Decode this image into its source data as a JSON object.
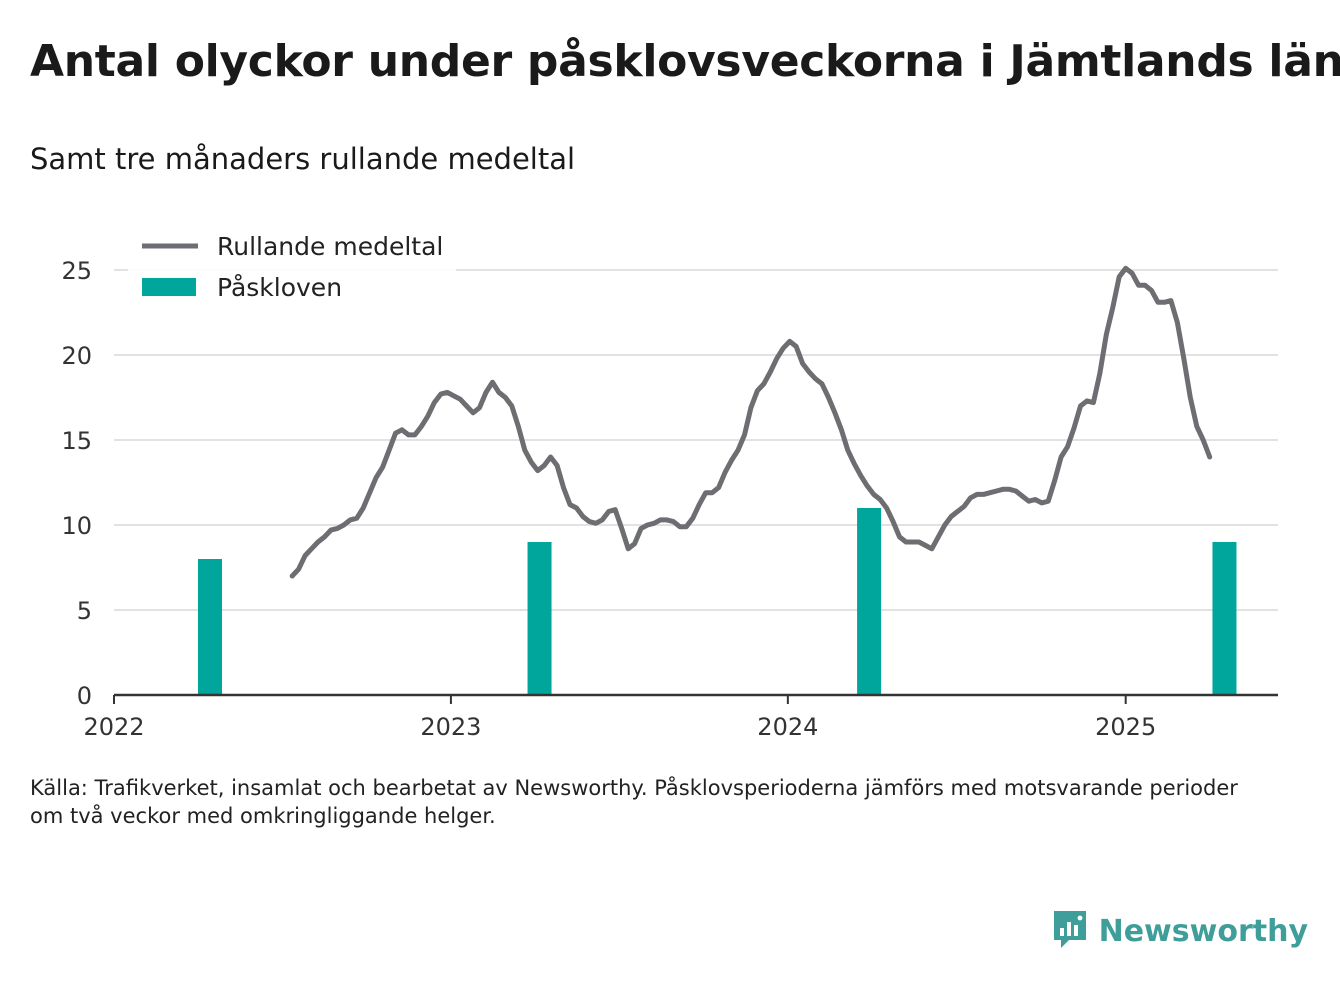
{
  "title": "Antal olyckor under påsklovsveckorna i Jämtlands län",
  "subtitle": "Samt tre månaders rullande medeltal",
  "source_lines": [
    "Källa: Trafikverket, insamlat och bearbetat av Newsworthy. Påsklovsperioderna jämförs med motsvarande perioder",
    "om två veckor med omkringliggande helger."
  ],
  "brand": "Newsworthy",
  "colors": {
    "line": "#6d6e71",
    "bar": "#00a69c",
    "grid": "#d9d9d9",
    "axis": "#333333",
    "brand": "#3f9e99"
  },
  "chart_data": {
    "type": "bar+line",
    "x_axis": {
      "type": "date",
      "ticks": [
        "2022",
        "2023",
        "2024",
        "2025"
      ],
      "range": [
        "2022-01-01",
        "2025-06-15"
      ]
    },
    "y_axis": {
      "ticks": [
        0,
        5,
        10,
        15,
        20,
        25
      ],
      "ylim": [
        0,
        25
      ]
    },
    "grid": true,
    "legend": {
      "placement": "top-left",
      "entries": [
        "Rullande medeltal",
        "Påskloven"
      ]
    },
    "series": [
      {
        "name": "Påskloven",
        "type": "bar",
        "points": [
          {
            "date": "2022-04-15",
            "value": 8
          },
          {
            "date": "2023-04-07",
            "value": 9
          },
          {
            "date": "2024-03-29",
            "value": 11
          },
          {
            "date": "2025-04-18",
            "value": 9
          }
        ]
      },
      {
        "name": "Rullande medeltal",
        "type": "line",
        "points": [
          [
            "2022-07-13",
            7.0
          ],
          [
            "2022-07-20",
            7.4
          ],
          [
            "2022-07-27",
            8.2
          ],
          [
            "2022-08-03",
            8.6
          ],
          [
            "2022-08-10",
            9.0
          ],
          [
            "2022-08-17",
            9.3
          ],
          [
            "2022-08-24",
            9.7
          ],
          [
            "2022-08-31",
            9.8
          ],
          [
            "2022-09-07",
            10.0
          ],
          [
            "2022-09-14",
            10.3
          ],
          [
            "2022-09-21",
            10.4
          ],
          [
            "2022-09-28",
            11.0
          ],
          [
            "2022-10-05",
            11.9
          ],
          [
            "2022-10-12",
            12.8
          ],
          [
            "2022-10-19",
            13.4
          ],
          [
            "2022-10-26",
            14.4
          ],
          [
            "2022-11-02",
            15.4
          ],
          [
            "2022-11-09",
            15.6
          ],
          [
            "2022-11-16",
            15.3
          ],
          [
            "2022-11-23",
            15.3
          ],
          [
            "2022-11-30",
            15.8
          ],
          [
            "2022-12-07",
            16.4
          ],
          [
            "2022-12-14",
            17.2
          ],
          [
            "2022-12-21",
            17.7
          ],
          [
            "2022-12-28",
            17.8
          ],
          [
            "2023-01-04",
            17.6
          ],
          [
            "2023-01-11",
            17.4
          ],
          [
            "2023-01-18",
            17.0
          ],
          [
            "2023-01-25",
            16.6
          ],
          [
            "2023-02-01",
            16.9
          ],
          [
            "2023-02-08",
            17.8
          ],
          [
            "2023-02-15",
            18.4
          ],
          [
            "2023-02-22",
            17.8
          ],
          [
            "2023-03-01",
            17.5
          ],
          [
            "2023-03-08",
            17.0
          ],
          [
            "2023-03-15",
            15.8
          ],
          [
            "2023-03-22",
            14.4
          ],
          [
            "2023-03-29",
            13.7
          ],
          [
            "2023-04-05",
            13.2
          ],
          [
            "2023-04-12",
            13.5
          ],
          [
            "2023-04-19",
            14.0
          ],
          [
            "2023-04-26",
            13.5
          ],
          [
            "2023-05-03",
            12.2
          ],
          [
            "2023-05-10",
            11.2
          ],
          [
            "2023-05-17",
            11.0
          ],
          [
            "2023-05-24",
            10.5
          ],
          [
            "2023-05-31",
            10.2
          ],
          [
            "2023-06-07",
            10.1
          ],
          [
            "2023-06-14",
            10.3
          ],
          [
            "2023-06-21",
            10.8
          ],
          [
            "2023-06-28",
            10.9
          ],
          [
            "2023-07-05",
            9.8
          ],
          [
            "2023-07-12",
            8.6
          ],
          [
            "2023-07-19",
            8.9
          ],
          [
            "2023-07-26",
            9.8
          ],
          [
            "2023-08-02",
            10.0
          ],
          [
            "2023-08-09",
            10.1
          ],
          [
            "2023-08-16",
            10.3
          ],
          [
            "2023-08-23",
            10.3
          ],
          [
            "2023-08-30",
            10.2
          ],
          [
            "2023-09-06",
            9.9
          ],
          [
            "2023-09-13",
            9.9
          ],
          [
            "2023-09-20",
            10.4
          ],
          [
            "2023-09-27",
            11.2
          ],
          [
            "2023-10-04",
            11.9
          ],
          [
            "2023-10-11",
            11.9
          ],
          [
            "2023-10-18",
            12.2
          ],
          [
            "2023-10-25",
            13.1
          ],
          [
            "2023-11-01",
            13.8
          ],
          [
            "2023-11-08",
            14.4
          ],
          [
            "2023-11-15",
            15.3
          ],
          [
            "2023-11-22",
            16.9
          ],
          [
            "2023-11-29",
            17.9
          ],
          [
            "2023-12-06",
            18.3
          ],
          [
            "2023-12-13",
            19.0
          ],
          [
            "2023-12-20",
            19.8
          ],
          [
            "2023-12-27",
            20.4
          ],
          [
            "2024-01-03",
            20.8
          ],
          [
            "2024-01-10",
            20.5
          ],
          [
            "2024-01-17",
            19.5
          ],
          [
            "2024-01-24",
            19.0
          ],
          [
            "2024-01-31",
            18.6
          ],
          [
            "2024-02-07",
            18.3
          ],
          [
            "2024-02-14",
            17.5
          ],
          [
            "2024-02-21",
            16.6
          ],
          [
            "2024-02-28",
            15.6
          ],
          [
            "2024-03-06",
            14.4
          ],
          [
            "2024-03-13",
            13.6
          ],
          [
            "2024-03-20",
            12.9
          ],
          [
            "2024-03-27",
            12.3
          ],
          [
            "2024-04-03",
            11.8
          ],
          [
            "2024-04-10",
            11.5
          ],
          [
            "2024-04-17",
            11.0
          ],
          [
            "2024-04-24",
            10.2
          ],
          [
            "2024-05-01",
            9.3
          ],
          [
            "2024-05-08",
            9.0
          ],
          [
            "2024-05-15",
            9.0
          ],
          [
            "2024-05-22",
            9.0
          ],
          [
            "2024-05-29",
            8.8
          ],
          [
            "2024-06-05",
            8.6
          ],
          [
            "2024-06-12",
            9.3
          ],
          [
            "2024-06-19",
            10.0
          ],
          [
            "2024-06-26",
            10.5
          ],
          [
            "2024-07-03",
            10.8
          ],
          [
            "2024-07-10",
            11.1
          ],
          [
            "2024-07-17",
            11.6
          ],
          [
            "2024-07-24",
            11.8
          ],
          [
            "2024-07-31",
            11.8
          ],
          [
            "2024-08-07",
            11.9
          ],
          [
            "2024-08-14",
            12.0
          ],
          [
            "2024-08-21",
            12.1
          ],
          [
            "2024-08-28",
            12.1
          ],
          [
            "2024-09-04",
            12.0
          ],
          [
            "2024-09-11",
            11.7
          ],
          [
            "2024-09-18",
            11.4
          ],
          [
            "2024-09-25",
            11.5
          ],
          [
            "2024-10-02",
            11.3
          ],
          [
            "2024-10-09",
            11.4
          ],
          [
            "2024-10-16",
            12.6
          ],
          [
            "2024-10-23",
            14.0
          ],
          [
            "2024-10-30",
            14.6
          ],
          [
            "2024-11-06",
            15.7
          ],
          [
            "2024-11-13",
            17.0
          ],
          [
            "2024-11-20",
            17.3
          ],
          [
            "2024-11-27",
            17.2
          ],
          [
            "2024-12-04",
            18.9
          ],
          [
            "2024-12-11",
            21.2
          ],
          [
            "2024-12-18",
            22.8
          ],
          [
            "2024-12-25",
            24.6
          ],
          [
            "2025-01-01",
            25.1
          ],
          [
            "2025-01-08",
            24.8
          ],
          [
            "2025-01-15",
            24.1
          ],
          [
            "2025-01-22",
            24.1
          ],
          [
            "2025-01-29",
            23.8
          ],
          [
            "2025-02-05",
            23.1
          ],
          [
            "2025-02-12",
            23.1
          ],
          [
            "2025-02-19",
            23.2
          ],
          [
            "2025-02-26",
            21.9
          ],
          [
            "2025-03-05",
            19.8
          ],
          [
            "2025-03-12",
            17.5
          ],
          [
            "2025-03-19",
            15.8
          ],
          [
            "2025-03-26",
            15.0
          ],
          [
            "2025-04-02",
            14.0
          ]
        ]
      }
    ]
  }
}
